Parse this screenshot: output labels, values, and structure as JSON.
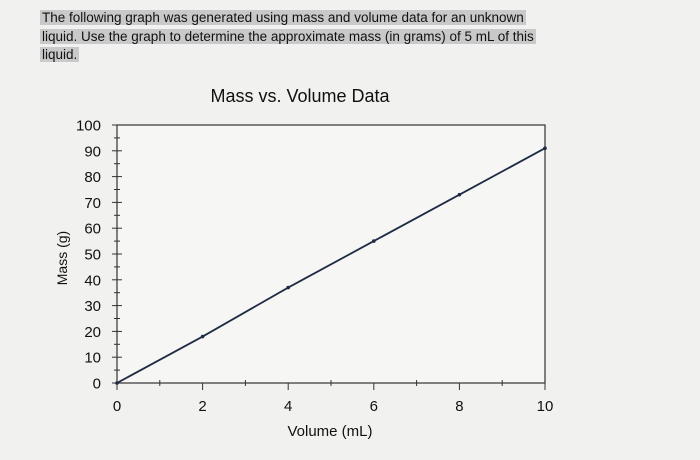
{
  "question": {
    "text": "The following graph was generated using mass and volume data for an unknown liquid. Use the graph to determine the approximate mass (in grams) of 5 mL of this liquid."
  },
  "chart_data": {
    "type": "line",
    "title": "Mass vs. Volume Data",
    "xlabel": "Volume (mL)",
    "ylabel": "Mass (g)",
    "xlim": [
      0,
      10
    ],
    "ylim": [
      0,
      100
    ],
    "x_ticks": [
      0,
      2,
      4,
      6,
      8,
      10
    ],
    "y_ticks": [
      0,
      10,
      20,
      30,
      40,
      50,
      60,
      70,
      80,
      90,
      100
    ],
    "grid": false,
    "legend": "none",
    "line_color": "#1f2a44",
    "series": [
      {
        "x": [
          0,
          2,
          4,
          6,
          8,
          10
        ],
        "y": [
          0,
          18,
          37,
          55,
          73,
          91
        ]
      }
    ]
  }
}
